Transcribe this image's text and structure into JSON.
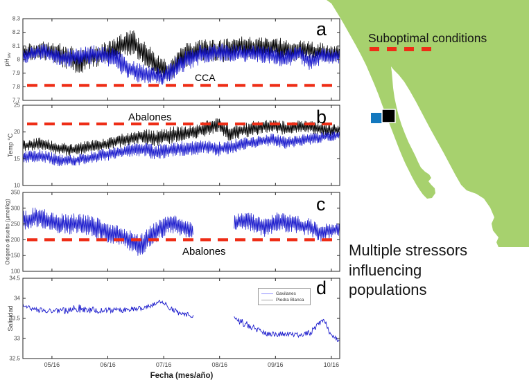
{
  "colors": {
    "series_blue": "#1a1acc",
    "series_black": "#000000",
    "ref_red": "#ee2d16",
    "map_land": "#a7d16e",
    "marker_blue": "#1378be",
    "marker_black": "#000000"
  },
  "xaxis": {
    "label": "Fecha (mes/año)",
    "tick_labels": [
      "05/16",
      "06/16",
      "07/16",
      "08/16",
      "09/16",
      "10/16"
    ],
    "tick_positions": [
      0.52,
      1.52,
      2.52,
      3.52,
      4.52,
      5.52
    ],
    "domain": [
      0,
      5.67
    ]
  },
  "map": {
    "title": "Suboptimal conditions",
    "caption": "Multiple stressors\ninfluencing\npopulations",
    "sites": [
      {
        "name": "Gavilanes",
        "color": "#1378be"
      },
      {
        "name": "Piedra Blanca",
        "color": "#000000"
      }
    ]
  },
  "legend": {
    "entries": [
      {
        "label": "Gavilanes",
        "color": "#8c8cff"
      },
      {
        "label": "Piedra Blanca",
        "color": "#a3a3a3"
      }
    ]
  },
  "chart_data": [
    {
      "type": "line",
      "letter": "a",
      "ylabel_main": "pH",
      "ylabel_sub": "sw",
      "ylim": [
        7.7,
        8.3
      ],
      "yticks": [
        7.7,
        7.8,
        7.9,
        8,
        8.1,
        8.2,
        8.3
      ],
      "ytick_labels": [
        "7.7",
        "7.8",
        "7.9",
        "8",
        "8.1",
        "8.2",
        "8.3"
      ],
      "ref_line": 7.81,
      "annotation": "CCA",
      "series": [
        {
          "name": "Piedra Blanca",
          "color": "#000000",
          "noise": "hash",
          "width": 0.75,
          "segments": [
            [
              [
                0,
                8.05,
                0.06
              ],
              [
                0.35,
                8.07,
                0.07
              ],
              [
                0.7,
                8.03,
                0.09
              ],
              [
                1.0,
                7.99,
                0.1
              ],
              [
                1.3,
                8.02,
                0.08
              ],
              [
                1.55,
                8.06,
                0.08
              ],
              [
                1.8,
                8.11,
                0.09
              ],
              [
                1.95,
                8.13,
                0.1
              ],
              [
                2.15,
                8.05,
                0.09
              ],
              [
                2.4,
                7.96,
                0.09
              ],
              [
                2.6,
                7.91,
                0.08
              ],
              [
                2.8,
                8.0,
                0.09
              ],
              [
                3.0,
                8.05,
                0.09
              ],
              [
                3.3,
                8.07,
                0.08
              ],
              [
                3.6,
                8.06,
                0.09
              ],
              [
                3.9,
                8.1,
                0.08
              ],
              [
                4.2,
                8.08,
                0.08
              ],
              [
                4.5,
                8.09,
                0.08
              ],
              [
                4.8,
                8.06,
                0.08
              ],
              [
                5.1,
                8.07,
                0.07
              ],
              [
                5.4,
                8.05,
                0.07
              ],
              [
                5.67,
                8.04,
                0.06
              ]
            ]
          ]
        },
        {
          "name": "Gavilanes",
          "color": "#1a1acc",
          "noise": "hash",
          "width": 0.75,
          "segments": [
            [
              [
                0,
                8.02,
                0.05
              ],
              [
                0.35,
                8.06,
                0.06
              ],
              [
                0.7,
                8.01,
                0.07
              ],
              [
                1.0,
                8.02,
                0.07
              ],
              [
                1.3,
                8.04,
                0.07
              ],
              [
                1.6,
                8.02,
                0.08
              ],
              [
                1.85,
                7.94,
                0.08
              ],
              [
                2.05,
                7.9,
                0.08
              ],
              [
                2.3,
                7.89,
                0.07
              ],
              [
                2.5,
                7.87,
                0.06
              ],
              [
                2.7,
                7.93,
                0.08
              ],
              [
                2.95,
                8.0,
                0.08
              ],
              [
                3.2,
                8.04,
                0.07
              ],
              [
                3.5,
                8.05,
                0.07
              ],
              [
                3.8,
                8.04,
                0.07
              ],
              [
                4.1,
                8.05,
                0.06
              ],
              [
                4.4,
                8.03,
                0.07
              ],
              [
                4.7,
                8.01,
                0.07
              ],
              [
                4.95,
                8.04,
                0.06
              ],
              [
                5.15,
                7.98,
                0.07
              ],
              [
                5.35,
                8.03,
                0.06
              ],
              [
                5.67,
                8.02,
                0.05
              ]
            ]
          ]
        }
      ]
    },
    {
      "type": "line",
      "letter": "b",
      "ylabel_main": "Temp °C",
      "ylim": [
        10,
        25
      ],
      "yticks": [
        10,
        15,
        20,
        25
      ],
      "ytick_labels": [
        "10",
        "15",
        "20",
        "25"
      ],
      "ref_line": 21.5,
      "annotation": "Abalones",
      "series": [
        {
          "name": "Piedra Blanca",
          "color": "#000000",
          "noise": "hash",
          "width": 0.75,
          "segments": [
            [
              [
                0,
                17.4,
                1.1
              ],
              [
                0.3,
                17.8,
                1.2
              ],
              [
                0.6,
                17.0,
                1.2
              ],
              [
                0.9,
                16.6,
                1.2
              ],
              [
                1.2,
                17.2,
                1.3
              ],
              [
                1.5,
                17.8,
                1.0
              ],
              [
                1.8,
                18.5,
                1.3
              ],
              [
                2.1,
                19.3,
                1.4
              ],
              [
                2.4,
                18.8,
                1.6
              ],
              [
                2.7,
                19.5,
                1.6
              ],
              [
                3.0,
                19.8,
                1.5
              ],
              [
                3.3,
                20.8,
                1.5
              ],
              [
                3.5,
                21.3,
                1.3
              ],
              [
                3.7,
                19.8,
                1.6
              ],
              [
                3.95,
                20.3,
                1.5
              ],
              [
                4.2,
                20.8,
                1.4
              ],
              [
                4.45,
                21.2,
                1.2
              ],
              [
                4.7,
                20.6,
                1.4
              ],
              [
                4.95,
                21.0,
                1.2
              ],
              [
                5.2,
                20.8,
                1.2
              ],
              [
                5.45,
                20.3,
                1.2
              ],
              [
                5.67,
                20.5,
                1.0
              ]
            ]
          ]
        },
        {
          "name": "Gavilanes",
          "color": "#1a1acc",
          "noise": "hash",
          "width": 0.75,
          "segments": [
            [
              [
                0,
                15.3,
                1.1
              ],
              [
                0.3,
                15.6,
                1.2
              ],
              [
                0.6,
                14.8,
                1.2
              ],
              [
                0.9,
                14.6,
                1.1
              ],
              [
                1.2,
                15.2,
                1.2
              ],
              [
                1.5,
                15.8,
                1.2
              ],
              [
                1.8,
                16.3,
                1.3
              ],
              [
                2.1,
                16.8,
                1.4
              ],
              [
                2.4,
                16.2,
                1.4
              ],
              [
                2.7,
                16.8,
                1.4
              ],
              [
                3.0,
                17.0,
                1.4
              ],
              [
                3.3,
                17.3,
                1.4
              ],
              [
                3.5,
                16.8,
                1.4
              ],
              [
                3.7,
                17.2,
                1.4
              ],
              [
                3.95,
                17.8,
                1.3
              ],
              [
                4.2,
                18.2,
                1.2
              ],
              [
                4.45,
                18.6,
                1.2
              ],
              [
                4.7,
                18.0,
                1.2
              ],
              [
                4.95,
                18.4,
                1.1
              ],
              [
                5.2,
                18.8,
                1.1
              ],
              [
                5.45,
                19.2,
                1.0
              ],
              [
                5.67,
                19.4,
                0.9
              ]
            ]
          ]
        }
      ]
    },
    {
      "type": "line",
      "letter": "c",
      "ylabel_main": "Oxigeno disuelto (µmol/kg)",
      "ylim": [
        100,
        350
      ],
      "yticks": [
        100,
        150,
        200,
        250,
        300,
        350
      ],
      "ytick_labels": [
        "100",
        "150",
        "200",
        "250",
        "300",
        "350"
      ],
      "ref_line": 200,
      "annotation": "Abalones",
      "series": [
        {
          "name": "Gavilanes",
          "color": "#1a1acc",
          "noise": "hash",
          "width": 0.75,
          "segments": [
            [
              [
                0,
                262,
                32
              ],
              [
                0.25,
                272,
                34
              ],
              [
                0.5,
                258,
                32
              ],
              [
                0.75,
                250,
                34
              ],
              [
                1.0,
                252,
                34
              ],
              [
                1.25,
                242,
                36
              ],
              [
                1.5,
                222,
                34
              ],
              [
                1.75,
                212,
                32
              ],
              [
                1.95,
                196,
                34
              ],
              [
                2.1,
                180,
                36
              ],
              [
                2.25,
                206,
                38
              ],
              [
                2.45,
                232,
                34
              ],
              [
                2.65,
                252,
                32
              ],
              [
                2.85,
                238,
                28
              ],
              [
                3.05,
                228,
                24
              ]
            ],
            [
              [
                3.78,
                252,
                26
              ],
              [
                3.95,
                262,
                28
              ],
              [
                4.15,
                252,
                30
              ],
              [
                4.35,
                238,
                34
              ],
              [
                4.55,
                258,
                30
              ],
              [
                4.75,
                252,
                30
              ],
              [
                4.95,
                248,
                28
              ],
              [
                5.15,
                238,
                30
              ],
              [
                5.35,
                220,
                30
              ],
              [
                5.5,
                228,
                26
              ],
              [
                5.67,
                232,
                22
              ]
            ]
          ]
        }
      ]
    },
    {
      "type": "line",
      "letter": "d",
      "ylabel_main": "Salinidad",
      "ylim": [
        32.5,
        34.5
      ],
      "yticks": [
        32.5,
        33,
        33.5,
        34,
        34.5
      ],
      "ytick_labels": [
        "32.5",
        "33",
        "33.5",
        "34",
        "34.5"
      ],
      "ref_line": null,
      "show_xlabels": true,
      "series": [
        {
          "name": "Gavilanes",
          "color": "#1a1acc",
          "noise": "jitter",
          "width": 0.9,
          "segments": [
            [
              [
                0,
                33.85,
                0.04
              ],
              [
                0.2,
                33.72,
                0.06
              ],
              [
                0.5,
                33.68,
                0.06
              ],
              [
                0.8,
                33.7,
                0.08
              ],
              [
                1.0,
                33.75,
                0.13
              ],
              [
                1.15,
                33.72,
                0.09
              ],
              [
                1.4,
                33.7,
                0.08
              ],
              [
                1.7,
                33.7,
                0.07
              ],
              [
                2.0,
                33.72,
                0.06
              ],
              [
                2.3,
                33.82,
                0.05
              ],
              [
                2.45,
                33.93,
                0.04
              ],
              [
                2.6,
                33.8,
                0.07
              ],
              [
                2.8,
                33.62,
                0.06
              ],
              [
                3.05,
                33.57,
                0.06
              ]
            ],
            [
              [
                3.78,
                33.48,
                0.07
              ],
              [
                3.95,
                33.38,
                0.09
              ],
              [
                4.15,
                33.25,
                0.07
              ],
              [
                4.35,
                33.12,
                0.06
              ],
              [
                4.55,
                33.1,
                0.06
              ],
              [
                4.75,
                33.12,
                0.06
              ],
              [
                4.95,
                33.08,
                0.06
              ],
              [
                5.15,
                33.15,
                0.07
              ],
              [
                5.3,
                33.38,
                0.06
              ],
              [
                5.4,
                33.45,
                0.05
              ],
              [
                5.5,
                33.12,
                0.06
              ],
              [
                5.6,
                33.0,
                0.05
              ],
              [
                5.67,
                32.92,
                0.04
              ]
            ]
          ]
        }
      ]
    }
  ]
}
